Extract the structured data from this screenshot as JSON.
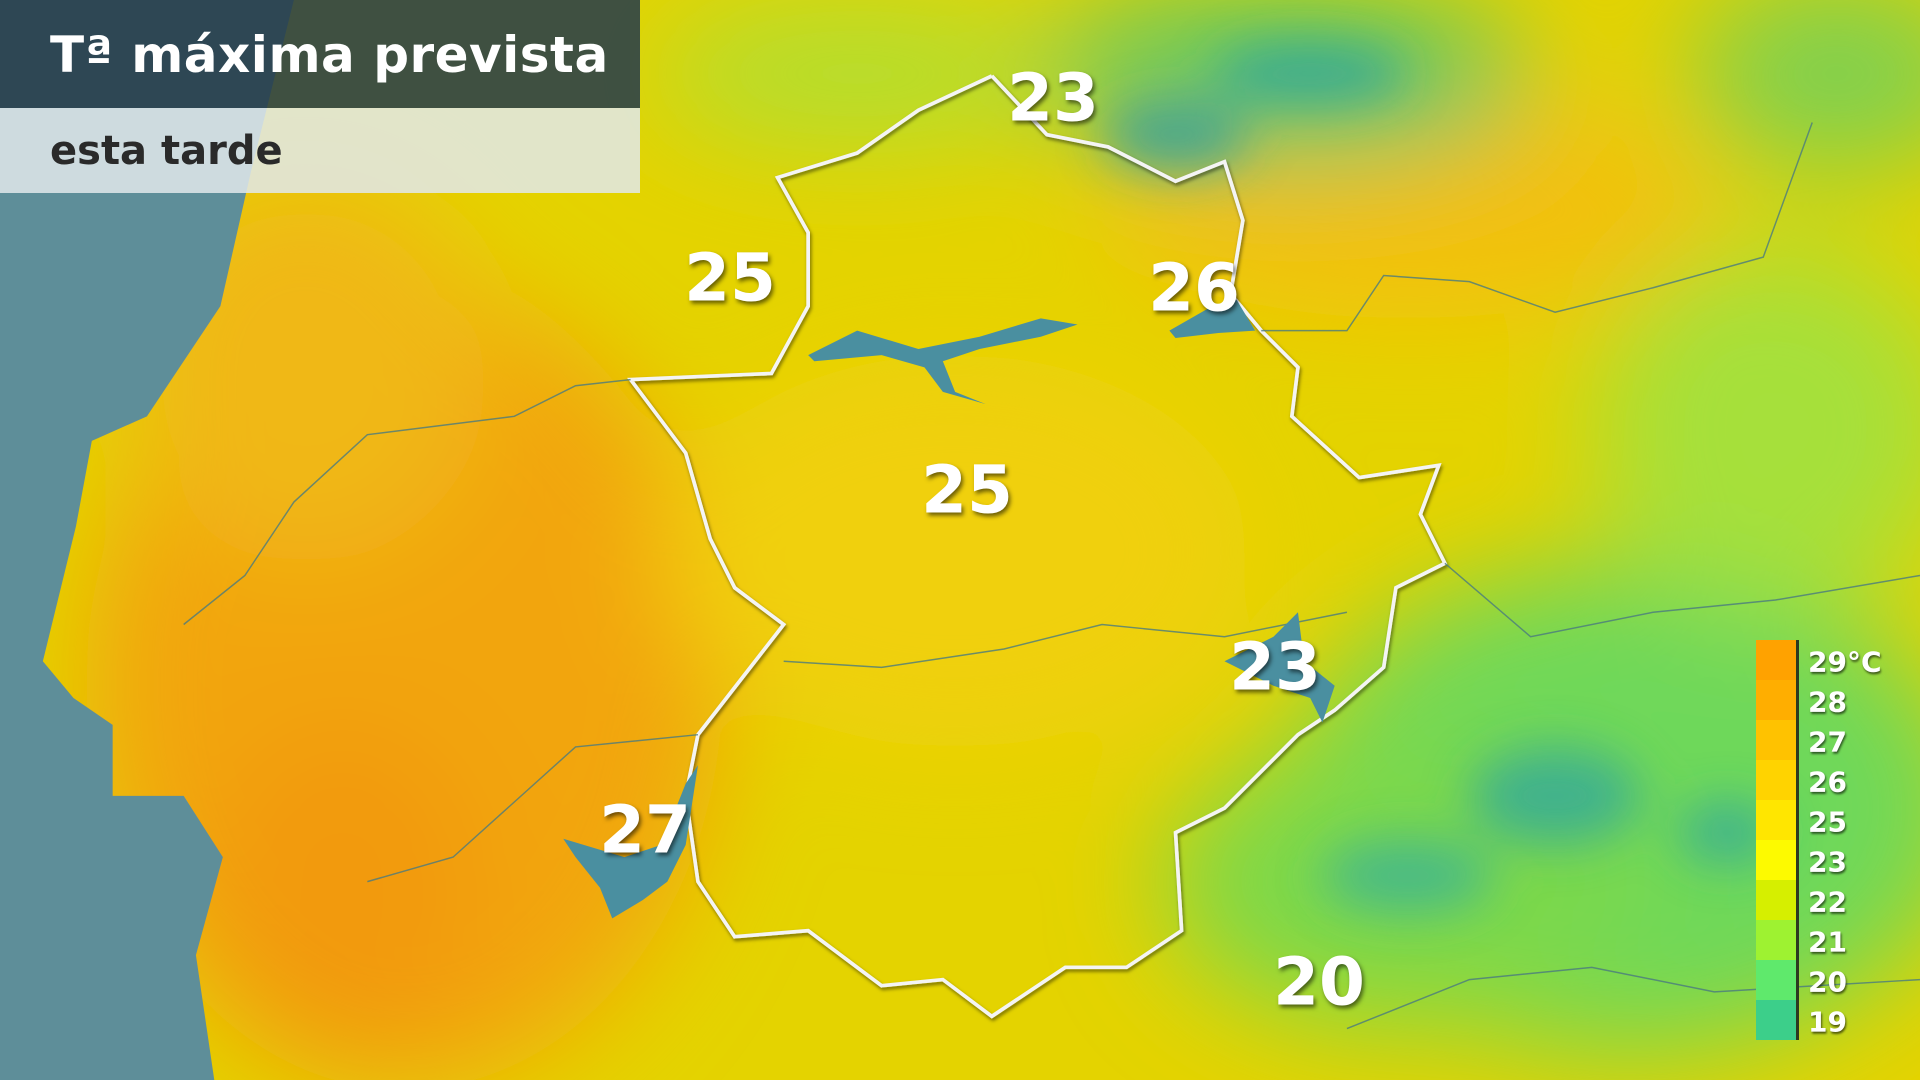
{
  "header": {
    "title": "Tª máxima prevista",
    "subtitle": "esta tarde"
  },
  "temperatures": [
    {
      "value": "23"
    },
    {
      "value": "25"
    },
    {
      "value": "26"
    },
    {
      "value": "25"
    },
    {
      "value": "23"
    },
    {
      "value": "27"
    },
    {
      "value": "20"
    }
  ],
  "legend": {
    "unit": "°C",
    "items": [
      {
        "label": "29°C",
        "color": "#ffa200"
      },
      {
        "label": "28",
        "color": "#ffae00"
      },
      {
        "label": "27",
        "color": "#ffc200"
      },
      {
        "label": "26",
        "color": "#ffd300"
      },
      {
        "label": "25",
        "color": "#ffe600"
      },
      {
        "label": "23",
        "color": "#fdfa00"
      },
      {
        "label": "22",
        "color": "#d6ef00"
      },
      {
        "label": "21",
        "color": "#9ef231"
      },
      {
        "label": "20",
        "color": "#5fe96c"
      },
      {
        "label": "19",
        "color": "#3ccf8a"
      }
    ]
  },
  "colors": {
    "sea": "#5f8f9a",
    "border": "#ffffff",
    "reservoir": "#4a8fa0"
  }
}
